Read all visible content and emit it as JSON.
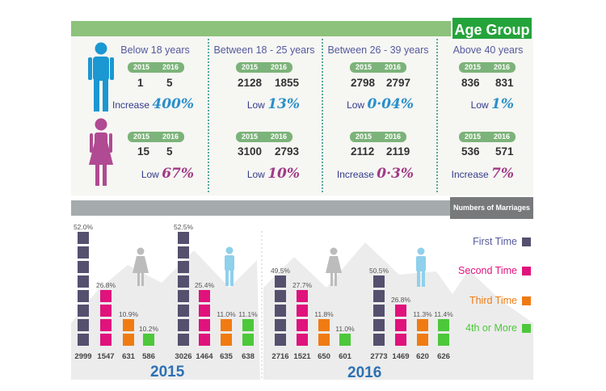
{
  "header": {
    "title": "Age Group"
  },
  "groups": [
    {
      "label": "Below 18 years",
      "male": {
        "y1": "2015",
        "y2": "2016",
        "v1": "1",
        "v2": "5",
        "change_label": "Increase",
        "change_value": "400%"
      },
      "female": {
        "y1": "2015",
        "y2": "2016",
        "v1": "15",
        "v2": "5",
        "change_label": "Low",
        "change_value": "67%"
      }
    },
    {
      "label": "Between 18 - 25 years",
      "male": {
        "y1": "2015",
        "y2": "2016",
        "v1": "2128",
        "v2": "1855",
        "change_label": "Low",
        "change_value": "13%"
      },
      "female": {
        "y1": "2015",
        "y2": "2016",
        "v1": "3100",
        "v2": "2793",
        "change_label": "Low",
        "change_value": "10%"
      }
    },
    {
      "label": "Between 26 - 39 years",
      "male": {
        "y1": "2015",
        "y2": "2016",
        "v1": "2798",
        "v2": "2797",
        "change_label": "Low",
        "change_value": "0·04%"
      },
      "female": {
        "y1": "2015",
        "y2": "2016",
        "v1": "2112",
        "v2": "2119",
        "change_label": "Increase",
        "change_value": "0·3%"
      }
    },
    {
      "label": "Above 40 years",
      "male": {
        "y1": "2015",
        "y2": "2016",
        "v1": "836",
        "v2": "831",
        "change_label": "Low",
        "change_value": "1%"
      },
      "female": {
        "y1": "2015",
        "y2": "2016",
        "v1": "536",
        "v2": "571",
        "change_label": "Increase",
        "change_value": "7%"
      }
    }
  ],
  "icons": {
    "male": "male-person-icon",
    "female": "female-person-icon",
    "male_color": "#1b97d2",
    "female_color": "#b04a92"
  },
  "chart_data": {
    "type": "bar",
    "title": "Numbers of Marriages",
    "categories": [
      "First Time",
      "Second Time",
      "Third Time",
      "4th or More"
    ],
    "colors": [
      "#54506e",
      "#e0127c",
      "#f07b12",
      "#4cc83a"
    ],
    "groups": [
      {
        "name": "2015",
        "clusters": [
          {
            "gender": "female",
            "values": [
              2999,
              1547,
              631,
              586
            ],
            "percent_labels": [
              "52.0%",
              "26.8%",
              "10.9%",
              "10.2%"
            ],
            "value_labels": [
              "2999",
              "1547",
              "631",
              "586"
            ],
            "blocks": [
              8,
              4,
              2,
              1
            ]
          },
          {
            "gender": "male",
            "values": [
              3026,
              1464,
              635,
              638
            ],
            "percent_labels": [
              "52.5%",
              "25.4%",
              "11.0%",
              "11.1%"
            ],
            "value_labels": [
              "3026",
              "1464",
              "635",
              "638"
            ],
            "blocks": [
              8,
              4,
              2,
              2
            ]
          }
        ]
      },
      {
        "name": "2016",
        "clusters": [
          {
            "gender": "female",
            "values": [
              2716,
              1521,
              650,
              601
            ],
            "percent_labels": [
              "49.5%",
              "27.7%",
              "11.8%",
              "11.0%"
            ],
            "value_labels": [
              "2716",
              "1521",
              "650",
              "601"
            ],
            "blocks": [
              5,
              4,
              2,
              1
            ]
          },
          {
            "gender": "male",
            "values": [
              2773,
              1469,
              620,
              626
            ],
            "percent_labels": [
              "50.5%",
              "26.8%",
              "11.3%",
              "11.4%"
            ],
            "value_labels": [
              "2773",
              "1469",
              "620",
              "626"
            ],
            "blocks": [
              5,
              3,
              2,
              2
            ]
          }
        ]
      }
    ]
  },
  "chart_icons": {
    "female": "#bcbcbc",
    "male": "#8fd0ec"
  }
}
